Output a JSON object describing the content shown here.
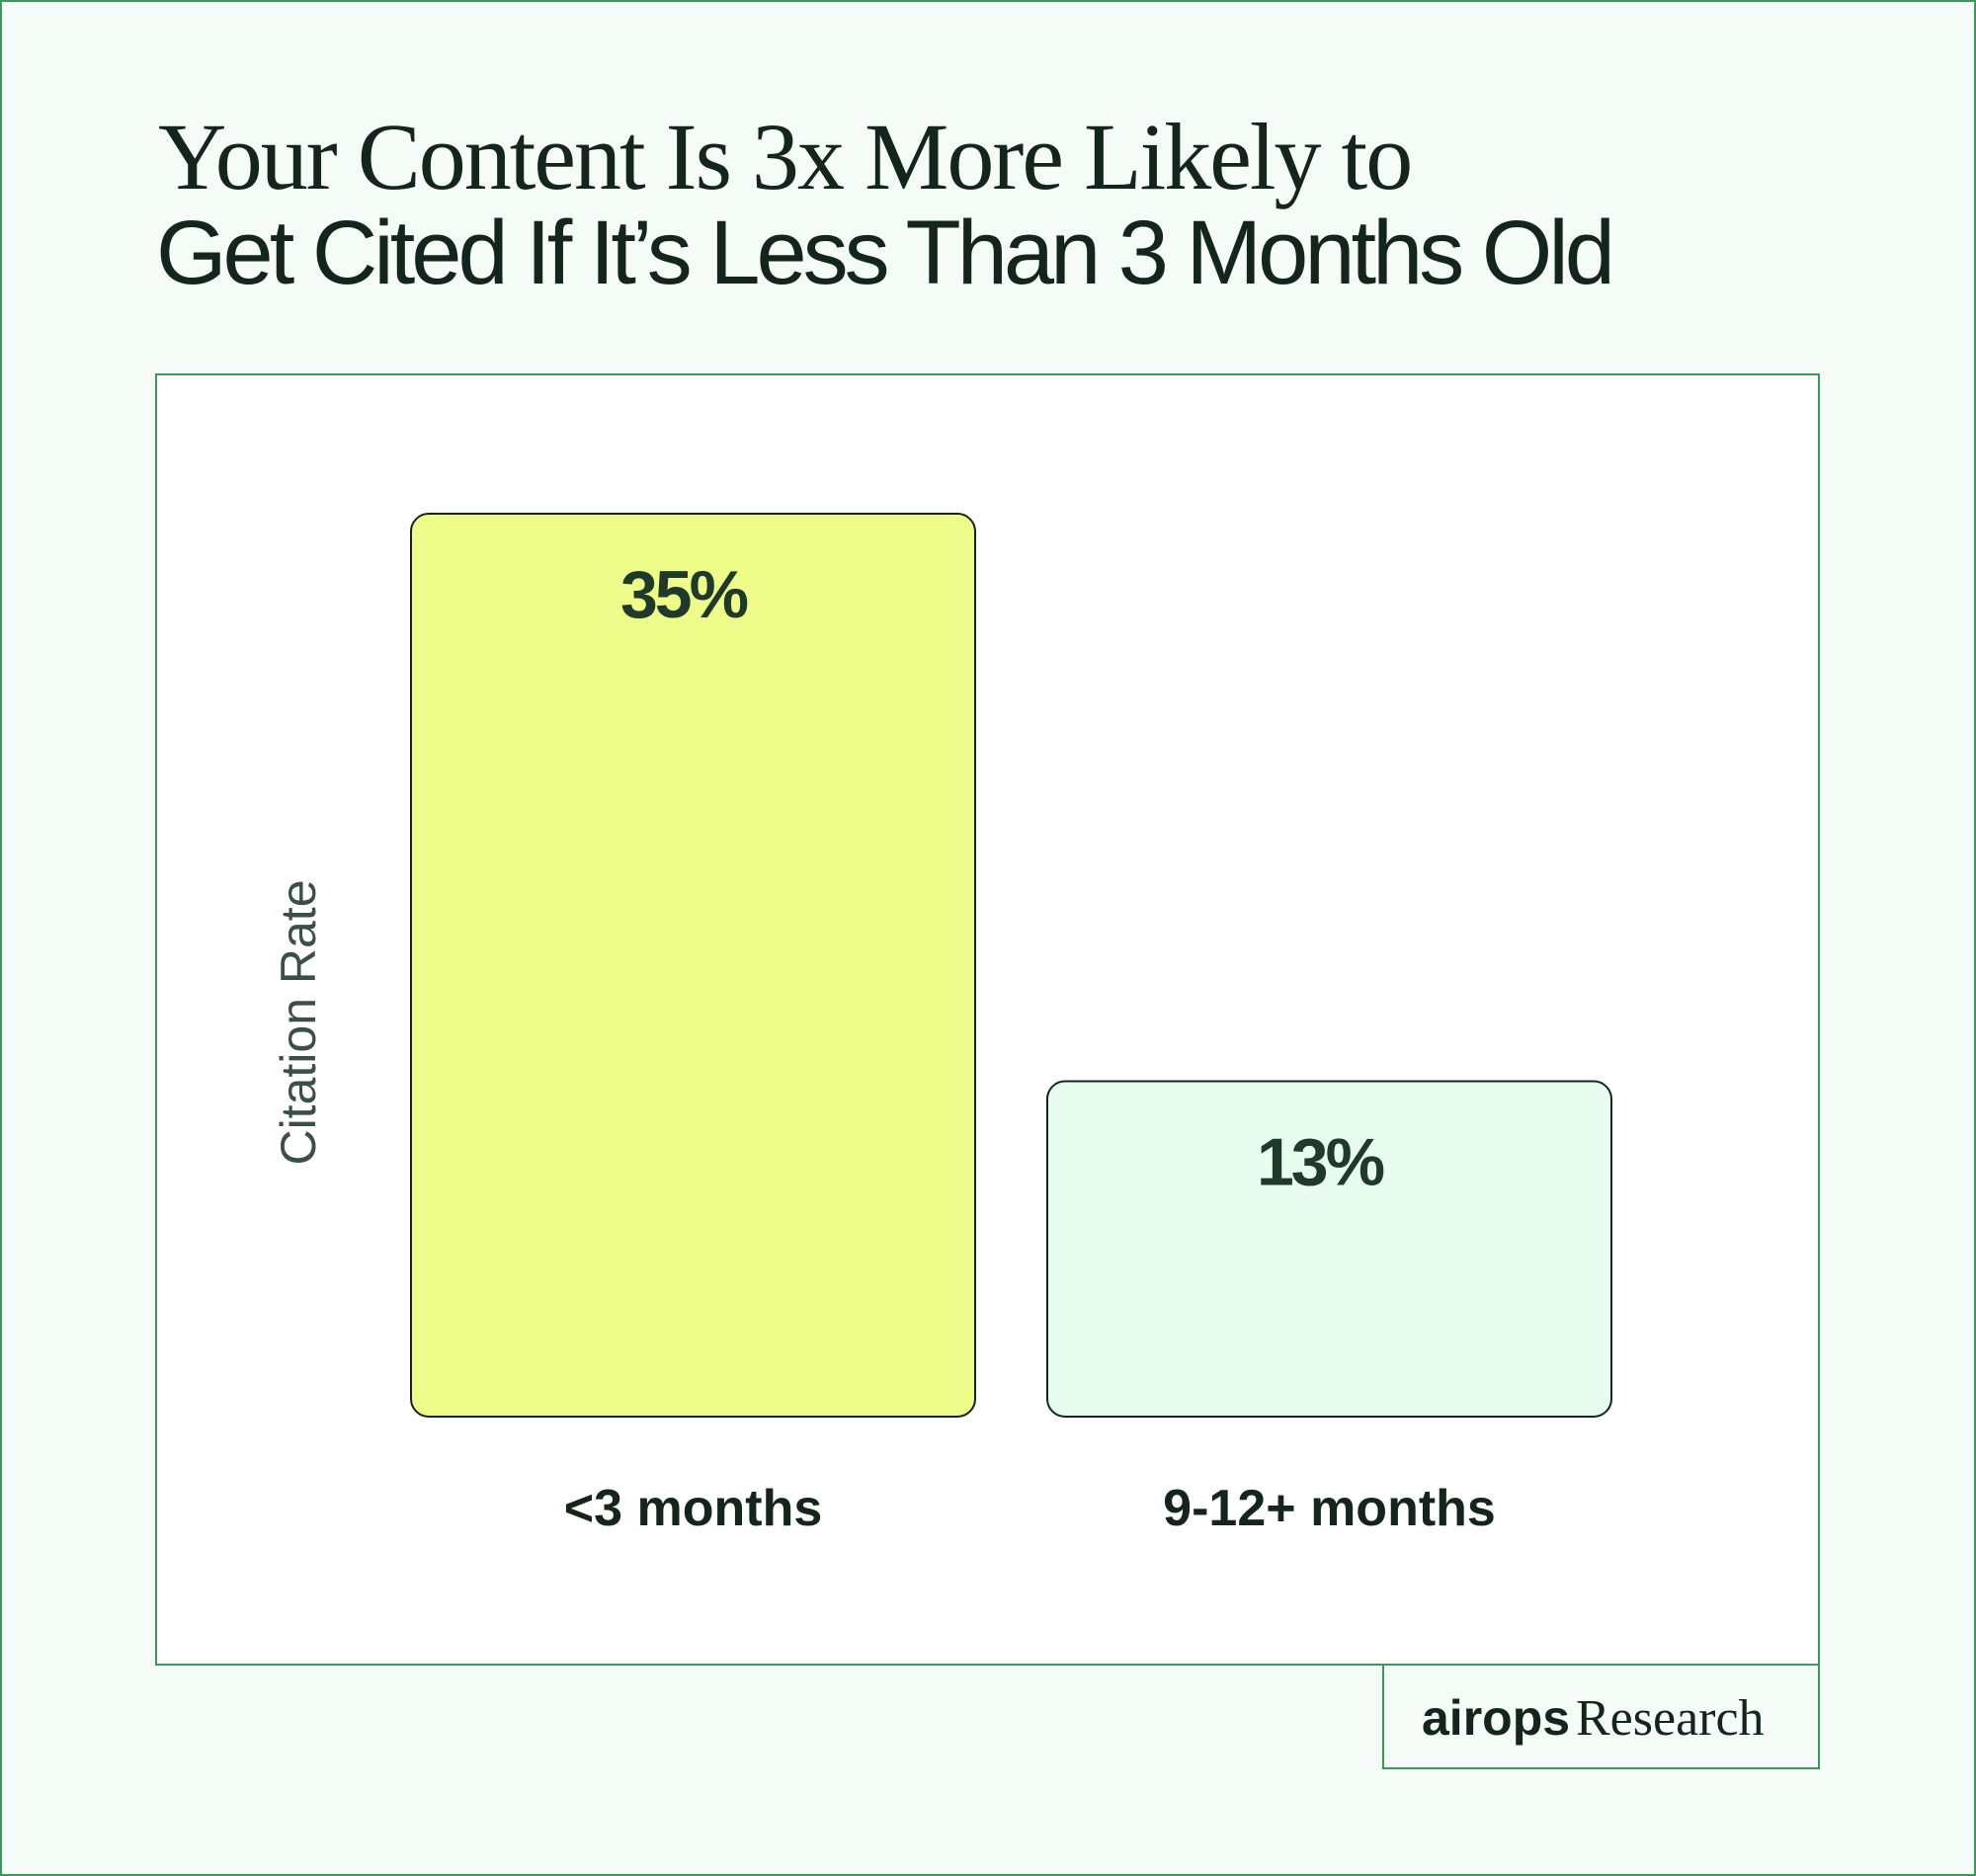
{
  "chart_data": {
    "type": "bar",
    "title": [
      "Your Content Is 3x More Likely to",
      "Get Cited If It’s Less Than 3 Months Old"
    ],
    "y_label": "Citation Rate",
    "categories": [
      "<3 months",
      "9-12+ months"
    ],
    "values": [
      35,
      13
    ],
    "value_labels": [
      "35%",
      "13%"
    ],
    "colors": [
      "#eefc8a",
      "#e8fdf0"
    ]
  },
  "footer": {
    "brand": "airops",
    "label": "Research"
  }
}
